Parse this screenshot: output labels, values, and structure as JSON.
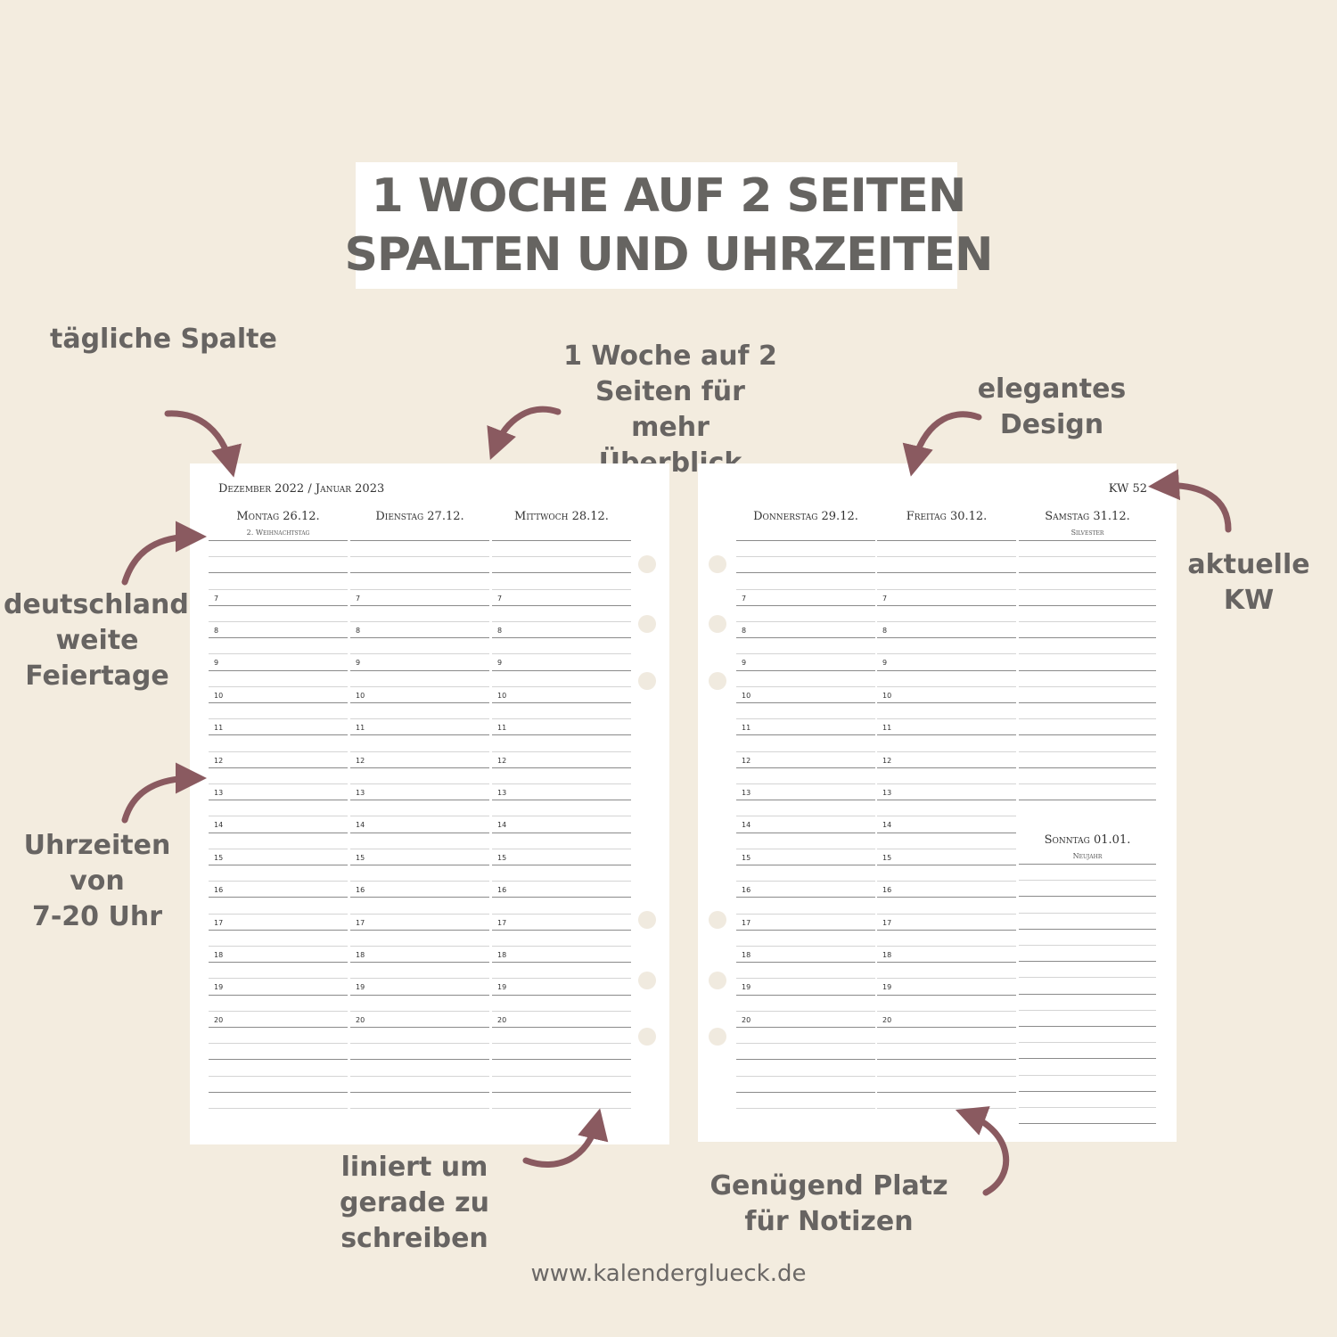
{
  "title": {
    "line1": "1 WOCHE AUF 2 SEITEN",
    "line2": "SPALTEN UND UHRZEITEN"
  },
  "annotations": {
    "daily_column": "tägliche Spalte",
    "week_two_pages": [
      "1 Woche auf 2",
      "Seiten für",
      "mehr",
      "Überblick"
    ],
    "elegant_design": [
      "elegantes",
      "Design"
    ],
    "holidays": [
      "deutschland-",
      "weite",
      "Feiertage"
    ],
    "current_week": [
      "aktuelle",
      "KW"
    ],
    "hours": [
      "Uhrzeiten",
      "von",
      "7-20 Uhr"
    ],
    "lined": [
      "liniert um",
      "gerade zu",
      "schreiben"
    ],
    "notes_space": [
      "Genügend Platz",
      "für Notizen"
    ]
  },
  "left_page": {
    "header": "Dezember 2022 / Januar 2023",
    "days": [
      {
        "name": "Montag 26.12.",
        "holiday": "2. Weihnachtstag"
      },
      {
        "name": "Dienstag 27.12.",
        "holiday": ""
      },
      {
        "name": "Mittwoch 28.12.",
        "holiday": ""
      }
    ]
  },
  "right_page": {
    "week": "KW 52",
    "days": [
      {
        "name": "Donnerstag 29.12.",
        "holiday": ""
      },
      {
        "name": "Freitag 30.12.",
        "holiday": ""
      },
      {
        "name": "Samstag 31.12.",
        "holiday": "Silvester"
      }
    ],
    "sunday": {
      "name": "Sonntag 01.01.",
      "holiday": "Neujahr"
    }
  },
  "hours": [
    "7",
    "8",
    "9",
    "10",
    "11",
    "12",
    "13",
    "14",
    "15",
    "16",
    "17",
    "18",
    "19",
    "20"
  ],
  "footer": {
    "url": "www.kalenderglueck.de"
  },
  "colors": {
    "background": "#f3ecdf",
    "arrow": "#8a5a60",
    "text": "#676462"
  }
}
